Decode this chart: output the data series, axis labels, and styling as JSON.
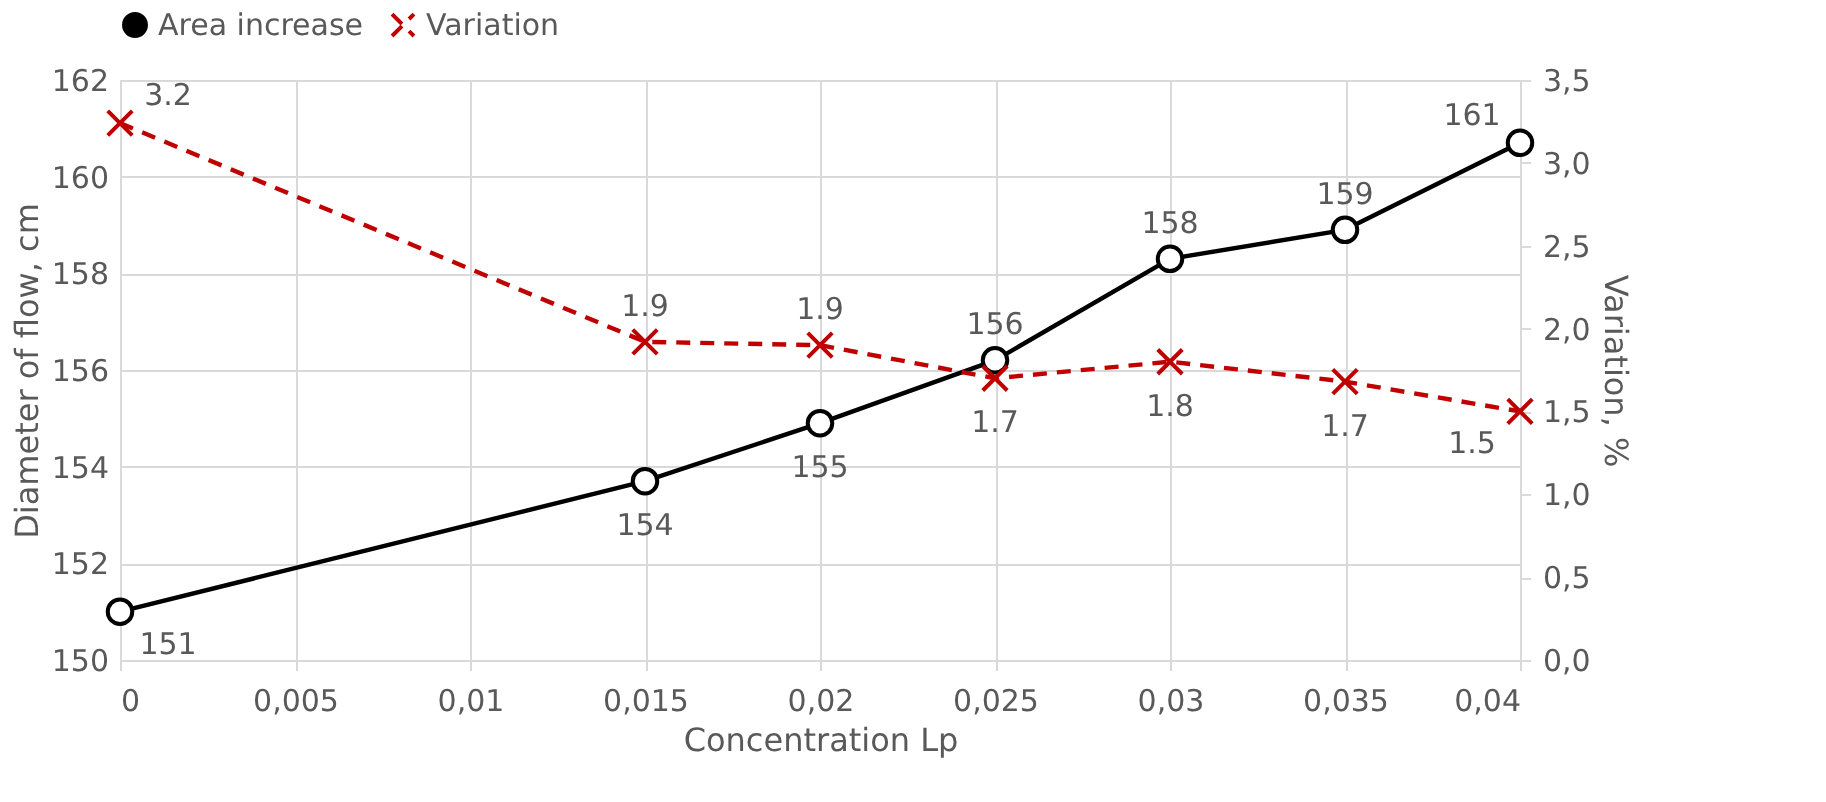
{
  "chart_data": {
    "type": "line",
    "x": [
      0,
      0.015,
      0.02,
      0.025,
      0.03,
      0.035,
      0.04
    ],
    "xlabel": "Concentration Lp",
    "ylabel": "Diameter of flow, cm",
    "y2label": "Variation, %",
    "series": [
      {
        "name": "Area increase",
        "color": "#000000",
        "marker": "circle",
        "line_style": "solid",
        "values": [
          151.0,
          153.7,
          154.9,
          156.2,
          158.3,
          158.9,
          160.7
        ],
        "value_labels": [
          "151",
          "154",
          "155",
          "156",
          "158",
          "159",
          "161"
        ]
      },
      {
        "name": "Variation",
        "color": "#c00000",
        "marker": "cross",
        "line_style": "dashed",
        "axis": "y2",
        "values": [
          3.24,
          1.92,
          1.9,
          1.7,
          1.8,
          1.68,
          1.5
        ],
        "value_labels": [
          "3.2",
          "1.9",
          "1.9",
          "1.7",
          "1.8",
          "1.7",
          "1.5"
        ]
      }
    ],
    "xlim": [
      0,
      0.04
    ],
    "xticks": [
      0,
      {
        "value": 0.005,
        "label": "0,005"
      },
      {
        "value": 0.01,
        "label": "0,01"
      },
      {
        "value": 0.015,
        "label": "0,015"
      },
      {
        "value": 0.02,
        "label": "0,02"
      },
      {
        "value": 0.025,
        "label": "0,025"
      },
      {
        "value": 0.03,
        "label": "0,03"
      },
      {
        "value": 0.035,
        "label": "0,035"
      },
      {
        "value": 0.04,
        "label": "0,04"
      }
    ],
    "ylim": [
      150,
      162
    ],
    "yticks": [
      150,
      152,
      154,
      156,
      158,
      160,
      162
    ],
    "y2lim": [
      0,
      3.5
    ],
    "y2ticks": [
      {
        "value": 0,
        "label": "0,0"
      },
      {
        "value": 0.5,
        "label": "0,5"
      },
      {
        "value": 1,
        "label": "1,0"
      },
      {
        "value": 1.5,
        "label": "1,5"
      },
      {
        "value": 2,
        "label": "2,0"
      },
      {
        "value": 2.5,
        "label": "2,5"
      },
      {
        "value": 3,
        "label": "3,0"
      },
      {
        "value": 3.5,
        "label": "3,5"
      }
    ],
    "grid": true,
    "legend": "top"
  }
}
